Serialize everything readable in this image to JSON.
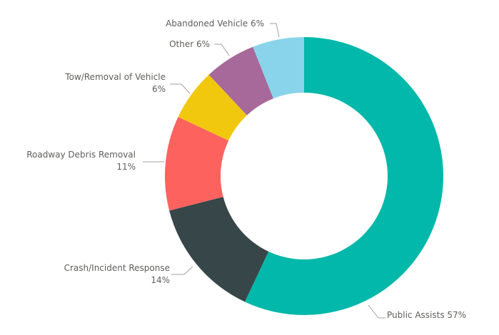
{
  "chart_data": {
    "type": "pie",
    "donut": true,
    "slices": [
      {
        "name": "Public Assists",
        "value": 57,
        "label": "57%",
        "color": "#01b8aa"
      },
      {
        "name": "Crash/Incident Response",
        "value": 14,
        "label": "14%",
        "color": "#374649"
      },
      {
        "name": "Roadway Debris Removal",
        "value": 11,
        "label": "11%",
        "color": "#fd625e"
      },
      {
        "name": "Tow/Removal of Vehicle",
        "value": 6,
        "label": "6%",
        "color": "#f2c80f"
      },
      {
        "name": "Other",
        "value": 6,
        "label": "6%",
        "color": "#a66999"
      },
      {
        "name": "Abandoned Vehicle",
        "value": 6,
        "label": "6%",
        "color": "#8ad4eb"
      }
    ],
    "legend": "none",
    "data_labels": "outside with leader lines"
  }
}
